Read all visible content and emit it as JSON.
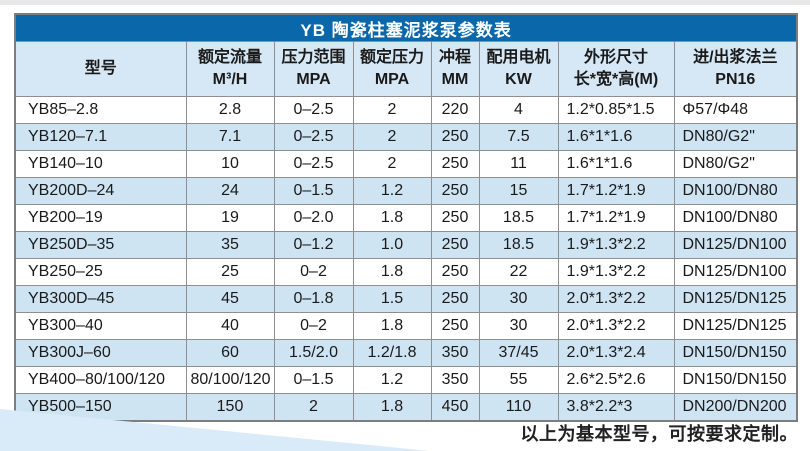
{
  "table": {
    "title": "YB 陶瓷柱塞泥浆泵参数表",
    "columns": [
      {
        "label": "型号",
        "unit": ""
      },
      {
        "label": "额定流量",
        "unit": "M³/H"
      },
      {
        "label": "压力范围",
        "unit": "MPA"
      },
      {
        "label": "额定压力",
        "unit": "MPA"
      },
      {
        "label": "冲程",
        "unit": "MM"
      },
      {
        "label": "配用电机",
        "unit": "KW"
      },
      {
        "label": "外形尺寸",
        "unit": "长*宽*高(M)"
      },
      {
        "label": "进/出浆法兰",
        "unit": "PN16"
      }
    ],
    "rows": [
      [
        "YB85–2.8",
        "2.8",
        "0–2.5",
        "2",
        "220",
        "4",
        "1.2*0.85*1.5",
        "Φ57/Φ48"
      ],
      [
        "YB120–7.1",
        "7.1",
        "0–2.5",
        "2",
        "250",
        "7.5",
        "1.6*1*1.6",
        "DN80/G2\""
      ],
      [
        "YB140–10",
        "10",
        "0–2.5",
        "2",
        "250",
        "11",
        "1.6*1*1.6",
        "DN80/G2\""
      ],
      [
        "YB200D–24",
        "24",
        "0–1.5",
        "1.2",
        "250",
        "15",
        "1.7*1.2*1.9",
        "DN100/DN80"
      ],
      [
        "YB200–19",
        "19",
        "0–2.0",
        "1.8",
        "250",
        "18.5",
        "1.7*1.2*1.9",
        "DN100/DN80"
      ],
      [
        "YB250D–35",
        "35",
        "0–1.2",
        "1.0",
        "250",
        "18.5",
        "1.9*1.3*2.2",
        "DN125/DN100"
      ],
      [
        "YB250–25",
        "25",
        "0–2",
        "1.8",
        "250",
        "22",
        "1.9*1.3*2.2",
        "DN125/DN100"
      ],
      [
        "YB300D–45",
        "45",
        "0–1.8",
        "1.5",
        "250",
        "30",
        "2.0*1.3*2.2",
        "DN125/DN125"
      ],
      [
        "YB300–40",
        "40",
        "0–2",
        "1.8",
        "250",
        "30",
        "2.0*1.3*2.2",
        "DN125/DN125"
      ],
      [
        "YB300J–60",
        "60",
        "1.5/2.0",
        "1.2/1.8",
        "350",
        "37/45",
        "2.0*1.3*2.4",
        "DN150/DN150"
      ],
      [
        "YB400–80/100/120",
        "80/100/120",
        "0–1.5",
        "1.2",
        "350",
        "55",
        "2.6*2.5*2.6",
        "DN150/DN150"
      ],
      [
        "YB500–150",
        "150",
        "2",
        "1.8",
        "450",
        "110",
        "3.8*2.2*3",
        "DN200/DN200"
      ]
    ]
  },
  "footer": {
    "note": "以上为基本型号，可按要求定制。"
  },
  "colors": {
    "title_bar": "#0a67a9",
    "header_row_bg": "#d6e8f5",
    "alt_row_bg": "#cfe4f3",
    "row_bg": "#ffffff",
    "border": "#8f8f8f",
    "wedge": "#d9eaf8"
  }
}
